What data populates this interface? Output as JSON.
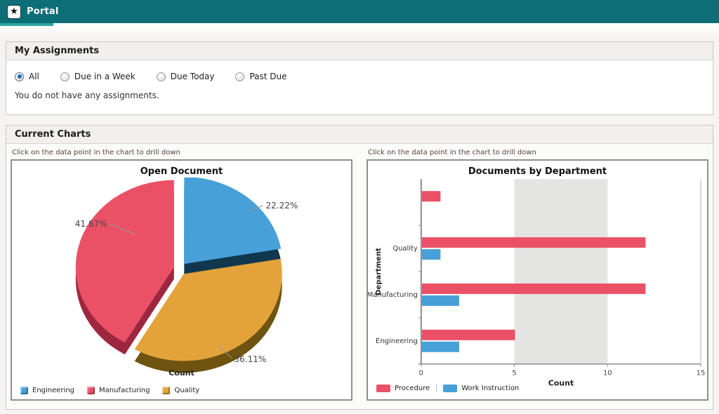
{
  "header": {
    "app_label": "Portal",
    "star_glyph": "★",
    "bar_color": "#0d6e78",
    "active_tab_underline_color": "#2ba6a1"
  },
  "assignments": {
    "title": "My Assignments",
    "filters": [
      {
        "label": "All",
        "selected": true
      },
      {
        "label": "Due in a Week",
        "selected": false
      },
      {
        "label": "Due Today",
        "selected": false
      },
      {
        "label": "Past Due",
        "selected": false
      }
    ],
    "empty_message": "You do not have any assignments."
  },
  "charts_section": {
    "title": "Current Charts",
    "drill_hint": "Click on the data point in the chart to drill down"
  },
  "chart_data": [
    {
      "type": "pie",
      "title": "Open Document",
      "xlabel": "Count",
      "start_angle_deg": 0,
      "slices": [
        {
          "label": "Engineering",
          "pct": 22.22,
          "pct_label": "22.22%",
          "color": "#47a0d8",
          "side_color": "#10374e"
        },
        {
          "label": "Quality",
          "pct": 36.11,
          "pct_label": "36.11%",
          "color": "#e3a33a",
          "side_color": "#6e5410"
        },
        {
          "label": "Manufacturing",
          "pct": 41.67,
          "pct_label": "41.67%",
          "color": "#ea5167",
          "side_color": "#9e2740"
        }
      ],
      "legend": [
        {
          "label": "Engineering",
          "color": "#47a0d8"
        },
        {
          "label": "Manufacturing",
          "color": "#ea5167"
        },
        {
          "label": "Quality",
          "color": "#e3a33a"
        }
      ],
      "legend_position": "bottom-left"
    },
    {
      "type": "bar",
      "orientation": "horizontal",
      "title": "Documents by Department",
      "categories": [
        "",
        "Quality",
        "Manufacturing",
        "Engineering"
      ],
      "series": [
        {
          "name": "Procedure",
          "color": "#ea5167",
          "values": [
            1,
            12,
            12,
            5
          ]
        },
        {
          "name": "Work Instruction",
          "color": "#47a0d8",
          "values": [
            0,
            1,
            2,
            2
          ]
        }
      ],
      "xlabel": "Count",
      "ylabel": "Department",
      "xlim": [
        0,
        15
      ],
      "xticks": [
        0,
        5,
        10,
        15
      ],
      "grid_band": {
        "from": 5,
        "to": 10,
        "color": "#e4e4e3"
      },
      "legend_position": "bottom-left"
    }
  ]
}
